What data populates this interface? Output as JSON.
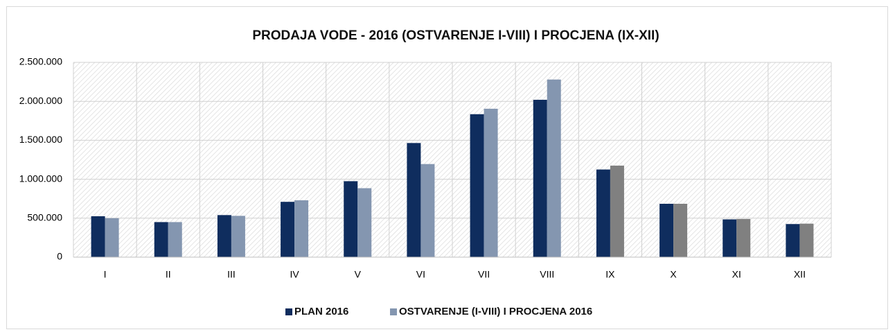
{
  "chart_data": {
    "type": "bar",
    "title": "PRODAJA VODE - 2016 (OSTVARENJE I-VIII) I PROCJENA (IX-XII)",
    "categories": [
      "I",
      "II",
      "III",
      "IV",
      "V",
      "VI",
      "VII",
      "VIII",
      "IX",
      "X",
      "XI",
      "XII"
    ],
    "series": [
      {
        "name": "PLAN 2016",
        "color": "#0f2d5e",
        "values": [
          525000,
          450000,
          540000,
          710000,
          975000,
          1465000,
          1835000,
          2020000,
          1125000,
          685000,
          485000,
          425000
        ]
      },
      {
        "name": "OSTVARENJE (I-VIII) I PROCJENA 2016",
        "color": "#8496b0",
        "colors": [
          "#8496b0",
          "#8496b0",
          "#8496b0",
          "#8496b0",
          "#8496b0",
          "#8496b0",
          "#8496b0",
          "#8496b0",
          "#808080",
          "#808080",
          "#808080",
          "#808080"
        ],
        "values": [
          500000,
          450000,
          530000,
          730000,
          885000,
          1195000,
          1905000,
          2280000,
          1175000,
          685000,
          490000,
          430000
        ]
      }
    ],
    "ylim": [
      0,
      2500000
    ],
    "yticks": [
      0,
      {
        "value": 500000,
        "label": "500.000"
      },
      {
        "value": 1000000,
        "label": "1.000.000"
      },
      {
        "value": 1500000,
        "label": "1.500.000"
      },
      {
        "value": 2000000,
        "label": "2.000.000"
      },
      {
        "value": 2500000,
        "label": "2.500.000"
      }
    ],
    "grid": true,
    "legend": "bottom"
  }
}
